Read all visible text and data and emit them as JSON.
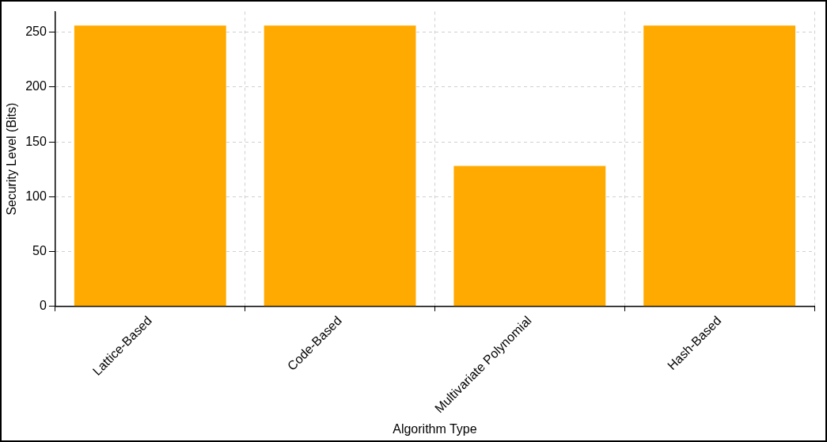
{
  "chart_data": {
    "type": "bar",
    "xlabel": "Algorithm Type",
    "ylabel": "Security Level (Bits)",
    "categories": [
      "Lattice-Based",
      "Code-Based",
      "Multivariate Polynomial",
      "Hash-Based"
    ],
    "values": [
      256,
      256,
      128,
      256
    ],
    "color": "#ffaa00",
    "ylim": [
      0,
      268.8
    ],
    "yticks": [
      0,
      50,
      100,
      150,
      200,
      250
    ],
    "grid": true,
    "legend": false
  }
}
